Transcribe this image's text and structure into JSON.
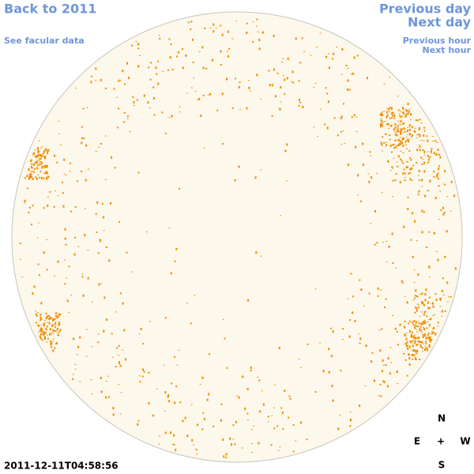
{
  "links": {
    "back": "Back to 2011",
    "facular": "See facular data",
    "previous_day": "Previous day",
    "next_day": "Next day",
    "previous_hour": "Previous hour",
    "next_hour": "Next hour"
  },
  "timestamp": "2011-12-11T04:58:56",
  "compass": {
    "north": "N",
    "east": "E",
    "center": "+",
    "west": "W",
    "south": "S"
  }
}
